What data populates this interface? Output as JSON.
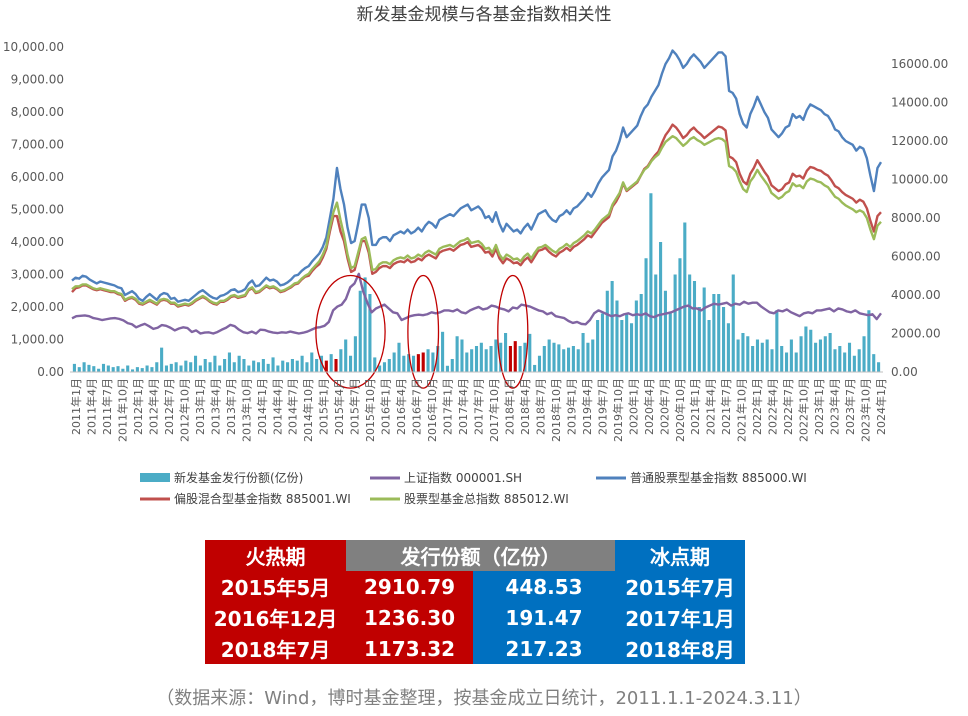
{
  "chart_data": {
    "type": "bar+line",
    "title": "新发基金规模与各基金指数相关性",
    "y_left": {
      "min": 0,
      "max": 10000,
      "step": 1000,
      "format": "0.00,"
    },
    "y_right": {
      "min": 0,
      "max": 17000,
      "step": 2000,
      "format": "0.00"
    },
    "x_labels": [
      "2011年1月",
      "2011年4月",
      "2011年7月",
      "2011年10月",
      "2012年1月",
      "2012年4月",
      "2012年7月",
      "2012年10月",
      "2013年1月",
      "2013年4月",
      "2013年7月",
      "2013年10月",
      "2014年1月",
      "2014年4月",
      "2014年7月",
      "2014年10月",
      "2015年1月",
      "2015年4月",
      "2015年7月",
      "2015年10月",
      "2016年1月",
      "2016年4月",
      "2016年7月",
      "2016年10月",
      "2017年1月",
      "2017年4月",
      "2017年7月",
      "2017年10月",
      "2018年1月",
      "2018年4月",
      "2018年7月",
      "2018年10月",
      "2019年1月",
      "2019年4月",
      "2019年7月",
      "2019年10月",
      "2020年1月",
      "2020年4月",
      "2020年7月",
      "2020年10月",
      "2021年1月",
      "2021年4月",
      "2021年7月",
      "2021年10月",
      "2022年1月",
      "2022年4月",
      "2022年7月",
      "2022年10月",
      "2023年1月",
      "2023年4月",
      "2023年7月",
      "2023年10月",
      "2024年1月"
    ],
    "highlight_months": [
      52,
      54,
      71,
      72,
      90,
      91
    ],
    "bars": {
      "name": "新发基金发行份额(亿份)",
      "color": "#4bacc6",
      "highlight_color": "#c00000",
      "values": [
        250,
        150,
        300,
        220,
        180,
        100,
        250,
        200,
        150,
        180,
        100,
        200,
        80,
        150,
        120,
        200,
        150,
        300,
        750,
        200,
        250,
        300,
        200,
        350,
        300,
        500,
        200,
        400,
        300,
        500,
        200,
        400,
        600,
        300,
        500,
        400,
        200,
        350,
        300,
        400,
        250,
        450,
        200,
        350,
        300,
        400,
        350,
        500,
        300,
        600,
        400,
        500,
        350,
        550,
        400,
        700,
        1000,
        500,
        1100,
        2500,
        2910.79,
        2400,
        448.53,
        200,
        300,
        400,
        600,
        900,
        500,
        550,
        500,
        550,
        600,
        700,
        600,
        800,
        1236.3,
        191.47,
        400,
        1100,
        1000,
        600,
        700,
        800,
        900,
        700,
        800,
        1000,
        900,
        1200,
        800,
        950,
        800,
        900,
        1173.32,
        217.23,
        500,
        800,
        1000,
        900,
        850,
        700,
        750,
        800,
        700,
        1200,
        900,
        1000,
        1600,
        1800,
        2500,
        2800,
        2200,
        1600,
        1800,
        1500,
        2200,
        2400,
        3500,
        5500,
        3000,
        4000,
        2500,
        1800,
        3000,
        3500,
        4600,
        3000,
        2800,
        2000,
        2600,
        1600,
        2400,
        2400,
        2000,
        1500,
        3000,
        1000,
        1200,
        1100,
        800,
        1000,
        900,
        1000,
        700,
        1900,
        800,
        600,
        1000,
        600,
        1100,
        1400,
        1300,
        900,
        1000,
        1100,
        1200,
        700,
        800,
        600,
        900,
        500,
        700,
        1100,
        1900,
        550,
        300
      ]
    },
    "series": [
      {
        "name": "上证指数 000001.SH",
        "color": "#8064a2",
        "axis": "right",
        "values": [
          2790,
          2900,
          2920,
          2940,
          2900,
          2800,
          2760,
          2700,
          2740,
          2780,
          2800,
          2760,
          2680,
          2540,
          2480,
          2320,
          2420,
          2500,
          2380,
          2240,
          2300,
          2440,
          2400,
          2300,
          2160,
          2260,
          2320,
          2280,
          2080,
          2160,
          2000,
          2050,
          2060,
          2000,
          2080,
          2200,
          2300,
          2450,
          2380,
          2200,
          2070,
          2020,
          2100,
          2000,
          2200,
          2180,
          2100,
          2050,
          2020,
          2060,
          2040,
          2100,
          2050,
          2000,
          2040,
          2100,
          2200,
          2300,
          2330,
          2400,
          2600,
          3200,
          3400,
          3500,
          3800,
          4400,
          4600,
          5100,
          4200,
          3600,
          3100,
          3300,
          3400,
          3500,
          3300,
          3100,
          3050,
          2700,
          2800,
          2900,
          2950,
          2980,
          2950,
          3000,
          3100,
          3050,
          3100,
          3200,
          3200,
          3150,
          3250,
          3100,
          3050,
          3200,
          3300,
          3380,
          3250,
          3300,
          3450,
          3400,
          3300,
          3250,
          3150,
          3350,
          3300,
          3500,
          3450,
          3400,
          3300,
          3200,
          3150,
          3000,
          3080,
          2900,
          2850,
          2800,
          2650,
          2550,
          2600,
          2500,
          2480,
          2700,
          3050,
          3200,
          3100,
          3000,
          2900,
          2950,
          2900,
          3000,
          3050,
          2950,
          3000,
          2950,
          3050,
          2900,
          2850,
          2950,
          3000,
          3050,
          3100,
          3200,
          3300,
          3400,
          3450,
          3300,
          3300,
          3200,
          3350,
          3450,
          3550,
          3500,
          3550,
          3600,
          3450,
          3550,
          3500,
          3650,
          3550,
          3600,
          3600,
          3400,
          3250,
          3100,
          3050,
          3200,
          3150,
          3250,
          3100,
          3000,
          2900,
          3050,
          3100,
          3050,
          3200,
          3200,
          3250,
          3300,
          3150,
          3300,
          3250,
          3150,
          3100,
          3200,
          3050,
          3000,
          2950,
          3000,
          2750,
          3050
        ]
      },
      {
        "name": "普通股票型基金指数 885000.WI",
        "color": "#4f81bd",
        "axis": "right",
        "values": [
          4750,
          4900,
          4850,
          5000,
          4950,
          4800,
          4700,
          4600,
          4700,
          4650,
          4600,
          4550,
          4500,
          4400,
          4350,
          4000,
          4100,
          4200,
          4050,
          3800,
          3700,
          3900,
          4050,
          3900,
          3750,
          4000,
          4100,
          4050,
          3800,
          3850,
          3650,
          3700,
          3750,
          3700,
          3850,
          4000,
          4150,
          4250,
          4100,
          3950,
          3850,
          3800,
          3950,
          4000,
          4100,
          4250,
          4300,
          4150,
          4200,
          4300,
          4600,
          4750,
          4450,
          4500,
          4700,
          4900,
          4750,
          4800,
          4700,
          4500,
          4550,
          4650,
          4800,
          5000,
          5050,
          5250,
          5400,
          5500,
          5750,
          5950,
          6150,
          6500,
          7000,
          8000,
          9000,
          10600,
          9500,
          8700,
          7500,
          6700,
          6800,
          7700,
          8700,
          8700,
          8000,
          6600,
          6600,
          6900,
          7000,
          7000,
          6800,
          7100,
          7200,
          7300,
          7200,
          7400,
          7200,
          7300,
          7500,
          7300,
          7600,
          7800,
          7700,
          7500,
          7900,
          8000,
          8100,
          8200,
          8100,
          8300,
          8500,
          8600,
          8700,
          8400,
          8500,
          8600,
          8400,
          8000,
          8100,
          7800,
          8300,
          7700,
          7300,
          7700,
          7500,
          7300,
          7400,
          7200,
          7500,
          7700,
          7400,
          7800,
          8200,
          8300,
          8400,
          8100,
          7900,
          7800,
          8100,
          8200,
          8400,
          8200,
          8500,
          8600,
          8800,
          9000,
          9300,
          9100,
          9400,
          9800,
          10100,
          10300,
          10500,
          11200,
          11500,
          12000,
          12700,
          12200,
          12400,
          12600,
          12800,
          13300,
          13700,
          13900,
          14300,
          14600,
          14900,
          15500,
          16000,
          16300,
          16700,
          16500,
          16200,
          15800,
          16000,
          16300,
          16500,
          16300,
          16100,
          15800,
          16000,
          16200,
          16400,
          16600,
          16600,
          16400,
          14600,
          14500,
          14200,
          13400,
          12900,
          12700,
          13400,
          13800,
          14300,
          13900,
          13500,
          13200,
          12600,
          12400,
          12200,
          12400,
          12700,
          12800,
          13400,
          13200,
          13300,
          13100,
          13600,
          13900,
          13800,
          13700,
          13600,
          13400,
          13300,
          13000,
          12600,
          12500,
          12200,
          12000,
          11900,
          11800,
          11500,
          11700,
          11600,
          11100,
          10200,
          9400,
          10600,
          10900
        ]
      },
      {
        "name": "偏股混合型基金指数 885001.WI",
        "color": "#c0504d",
        "axis": "right",
        "values": [
          4150,
          4350,
          4400,
          4500,
          4500,
          4400,
          4300,
          4250,
          4300,
          4250,
          4200,
          4150,
          4150,
          4050,
          4000,
          3700,
          3800,
          3850,
          3750,
          3550,
          3500,
          3600,
          3700,
          3600,
          3500,
          3700,
          3750,
          3700,
          3550,
          3550,
          3400,
          3450,
          3500,
          3450,
          3550,
          3700,
          3800,
          3900,
          3800,
          3650,
          3550,
          3500,
          3650,
          3650,
          3750,
          3900,
          3950,
          3850,
          3900,
          3950,
          4250,
          4350,
          4100,
          4150,
          4300,
          4450,
          4350,
          4400,
          4300,
          4150,
          4200,
          4300,
          4400,
          4550,
          4600,
          4800,
          4950,
          5000,
          5250,
          5450,
          5600,
          5950,
          6400,
          7300,
          8100,
          8100,
          7300,
          6800,
          5900,
          5200,
          5300,
          6000,
          6800,
          6800,
          6200,
          5100,
          5200,
          5400,
          5500,
          5500,
          5400,
          5600,
          5700,
          5750,
          5700,
          5850,
          5700,
          5750,
          5900,
          5800,
          6000,
          6100,
          6000,
          5900,
          6200,
          6300,
          6350,
          6400,
          6300,
          6450,
          6600,
          6650,
          6750,
          6500,
          6550,
          6600,
          6450,
          6200,
          6250,
          6000,
          6400,
          5900,
          5650,
          5900,
          5800,
          5650,
          5700,
          5550,
          5800,
          5950,
          5700,
          6000,
          6300,
          6350,
          6450,
          6250,
          6100,
          6000,
          6200,
          6300,
          6450,
          6300,
          6500,
          6600,
          6750,
          6900,
          7100,
          7000,
          7250,
          7500,
          7750,
          7900,
          8050,
          8600,
          8850,
          9200,
          9800,
          9400,
          9550,
          9700,
          9850,
          10200,
          10550,
          10700,
          11000,
          11250,
          11450,
          11900,
          12300,
          12550,
          12850,
          12700,
          12450,
          12150,
          12300,
          12550,
          12700,
          12500,
          12350,
          12150,
          12300,
          12450,
          12600,
          12750,
          12700,
          12550,
          11200,
          11100,
          10900,
          10300,
          9900,
          9750,
          10300,
          10600,
          11000,
          10700,
          10400,
          10150,
          9700,
          9550,
          9400,
          9500,
          9750,
          9850,
          10300,
          10150,
          10200,
          10050,
          10450,
          10650,
          10600,
          10500,
          10450,
          10300,
          10200,
          9950,
          9650,
          9550,
          9350,
          9200,
          9100,
          9000,
          8800,
          8950,
          8850,
          8500,
          7850,
          7300,
          8100,
          8300
        ]
      },
      {
        "name": "股票型基金总指数 885012.WI",
        "color": "#9bbb59",
        "axis": "right",
        "values": [
          4300,
          4450,
          4450,
          4550,
          4550,
          4450,
          4350,
          4300,
          4350,
          4300,
          4250,
          4200,
          4200,
          4100,
          4050,
          3750,
          3850,
          3900,
          3800,
          3600,
          3550,
          3650,
          3750,
          3650,
          3550,
          3750,
          3800,
          3750,
          3600,
          3600,
          3450,
          3500,
          3550,
          3500,
          3600,
          3750,
          3850,
          3950,
          3850,
          3700,
          3600,
          3550,
          3700,
          3700,
          3800,
          3950,
          4000,
          3900,
          3950,
          4000,
          4300,
          4400,
          4150,
          4200,
          4350,
          4500,
          4400,
          4450,
          4350,
          4200,
          4250,
          4350,
          4450,
          4600,
          4650,
          4850,
          5000,
          5100,
          5350,
          5550,
          5750,
          6100,
          6550,
          7500,
          8300,
          8800,
          7900,
          7100,
          6100,
          5400,
          5500,
          6200,
          6900,
          7000,
          6400,
          5300,
          5350,
          5600,
          5700,
          5700,
          5600,
          5800,
          5900,
          5950,
          5900,
          6050,
          5900,
          5950,
          6100,
          6000,
          6200,
          6300,
          6200,
          6100,
          6400,
          6500,
          6550,
          6600,
          6500,
          6650,
          6800,
          6850,
          6950,
          6700,
          6750,
          6800,
          6650,
          6400,
          6450,
          6200,
          6600,
          6100,
          5850,
          6100,
          6000,
          5850,
          5900,
          5750,
          6000,
          6150,
          5900,
          6200,
          6450,
          6500,
          6600,
          6450,
          6300,
          6200,
          6400,
          6500,
          6650,
          6500,
          6700,
          6800,
          6950,
          7100,
          7300,
          7200,
          7400,
          7650,
          7900,
          8050,
          8200,
          8700,
          9000,
          9300,
          9850,
          9450,
          9600,
          9750,
          9900,
          10200,
          10500,
          10650,
          10950,
          11150,
          11300,
          11650,
          11950,
          12100,
          12250,
          12150,
          11950,
          11750,
          11900,
          12100,
          12200,
          12050,
          11950,
          11800,
          11900,
          12000,
          12100,
          12150,
          12100,
          11950,
          10700,
          10600,
          10400,
          9900,
          9500,
          9350,
          9900,
          10150,
          10500,
          10200,
          9950,
          9700,
          9300,
          9150,
          9000,
          9100,
          9300,
          9400,
          9800,
          9650,
          9700,
          9550,
          9900,
          10050,
          10000,
          9900,
          9850,
          9700,
          9600,
          9350,
          9100,
          9000,
          8800,
          8650,
          8550,
          8450,
          8300,
          8400,
          8300,
          8000,
          7400,
          6900,
          7600,
          7800
        ]
      }
    ],
    "legend": [
      {
        "name": "新发基金发行份额(亿份)",
        "kind": "bar",
        "color": "#4bacc6"
      },
      {
        "name": "上证指数 000001.SH",
        "kind": "line",
        "color": "#8064a2"
      },
      {
        "name": "普通股票型基金指数 885000.WI",
        "kind": "line",
        "color": "#4f81bd"
      },
      {
        "name": "偏股混合型基金指数 885001.WI",
        "kind": "line",
        "color": "#c0504d"
      },
      {
        "name": "股票型基金总指数 885012.WI",
        "kind": "line",
        "color": "#9bbb59"
      }
    ],
    "legend_position": "bottom"
  },
  "table": {
    "header": [
      "火热期",
      "发行份额（亿份）",
      "冰点期"
    ],
    "rows": [
      {
        "hot_period": "2015年5月",
        "hot_shares": "2910.79",
        "cold_shares": "448.53",
        "cold_period": "2015年7月"
      },
      {
        "hot_period": "2016年12月",
        "hot_shares": "1236.30",
        "cold_shares": "191.47",
        "cold_period": "2017年1月"
      },
      {
        "hot_period": "2018年7月",
        "hot_shares": "1173.32",
        "cold_shares": "217.23",
        "cold_period": "2018年8月"
      }
    ]
  },
  "source_note": "（数据来源：Wind，博时基金整理，按基金成立日统计，2011.1.1-2024.3.11）"
}
